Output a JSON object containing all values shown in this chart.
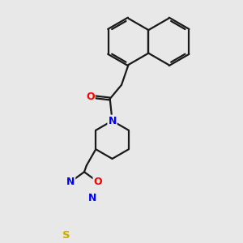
{
  "background_color": "#e8e8e8",
  "bond_color": "#1a1a1a",
  "N_color": "#0000ff",
  "O_color": "#ff0000",
  "S_color": "#ccaa00",
  "figsize": [
    3.0,
    3.0
  ],
  "dpi": 100,
  "xlim": [
    -2.5,
    3.5
  ],
  "ylim": [
    -4.5,
    3.5
  ]
}
